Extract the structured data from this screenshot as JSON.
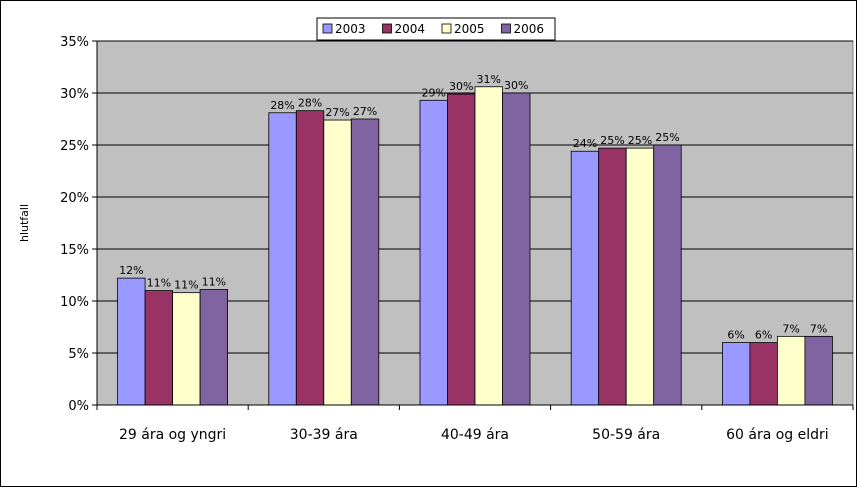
{
  "chart_data": {
    "type": "bar",
    "title": "",
    "xlabel": "",
    "ylabel": "hlutfall",
    "ylim": [
      0,
      35
    ],
    "y_tick_step": 5,
    "y_tick_format": "percent",
    "grid": true,
    "legend_position": "top",
    "plot_background": "#c0c0c0",
    "categories": [
      "29 ára og yngri",
      "30-39 ára",
      "40-49 ára",
      "50-59 ára",
      "60 ára og eldri"
    ],
    "series": [
      {
        "name": "2003",
        "color": "#9999ff",
        "values": [
          12.2,
          28.1,
          29.3,
          24.4,
          6.0
        ],
        "labels": [
          "12%",
          "28%",
          "29%",
          "24%",
          "6%"
        ]
      },
      {
        "name": "2004",
        "color": "#993366",
        "values": [
          11.0,
          28.3,
          29.9,
          24.7,
          6.0
        ],
        "labels": [
          "11%",
          "28%",
          "30%",
          "25%",
          "6%"
        ]
      },
      {
        "name": "2005",
        "color": "#ffffcc",
        "values": [
          10.8,
          27.4,
          30.6,
          24.7,
          6.6
        ],
        "labels": [
          "11%",
          "27%",
          "31%",
          "25%",
          "7%"
        ]
      },
      {
        "name": "2006",
        "color": "#8064a2",
        "values": [
          11.1,
          27.5,
          30.0,
          25.0,
          6.6
        ],
        "labels": [
          "11%",
          "27%",
          "30%",
          "25%",
          "7%"
        ]
      }
    ]
  }
}
